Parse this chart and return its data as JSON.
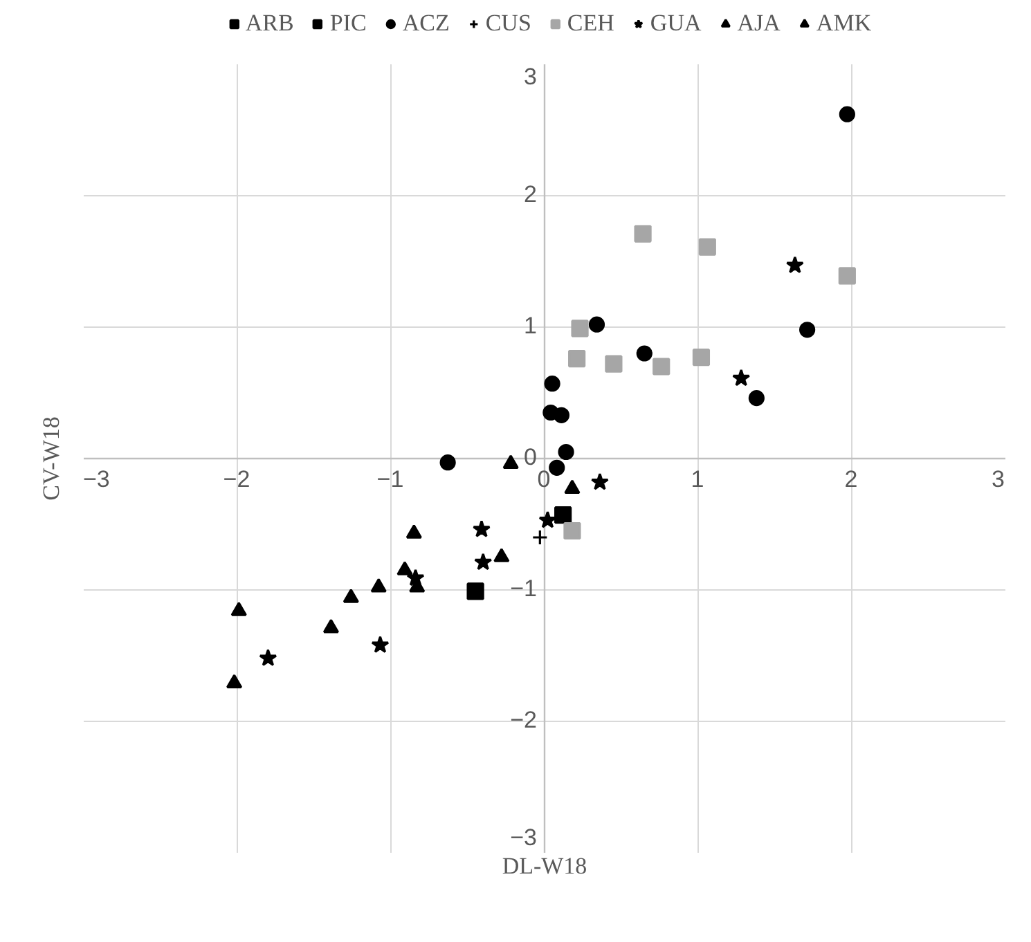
{
  "chart_data": {
    "type": "scatter",
    "xlabel": "DL-W18",
    "ylabel": "CV-W18",
    "xlim": [
      -3,
      3
    ],
    "ylim": [
      -3,
      3
    ],
    "xticks": [
      -3,
      -2,
      -1,
      0,
      1,
      2,
      3
    ],
    "yticks": [
      -3,
      -2,
      -1,
      0,
      1,
      2,
      3
    ],
    "grid": true,
    "legend": "top",
    "series": [
      {
        "name": "ARB",
        "color": "#000000",
        "marker": "square",
        "x": [
          -0.45
        ],
        "values": [
          -1.01
        ]
      },
      {
        "name": "PIC",
        "color": "#000000",
        "marker": "square",
        "x": [
          0.12
        ],
        "values": [
          -0.43
        ]
      },
      {
        "name": "ACZ",
        "color": "#000000",
        "marker": "circle",
        "x": [
          1.97,
          0.34,
          0.65,
          1.71,
          1.38,
          0.05,
          0.04,
          0.11,
          0.14,
          -0.63,
          0.08
        ],
        "values": [
          2.62,
          1.02,
          0.8,
          0.98,
          0.46,
          0.57,
          0.35,
          0.33,
          0.05,
          -0.03,
          -0.07
        ]
      },
      {
        "name": "CUS",
        "color": "#000000",
        "marker": "cross",
        "x": [
          -0.03
        ],
        "values": [
          -0.6
        ]
      },
      {
        "name": "CEH",
        "color": "#a6a6a6",
        "marker": "square",
        "x": [
          0.64,
          1.06,
          1.97,
          0.23,
          0.21,
          0.45,
          0.76,
          1.02,
          0.18
        ],
        "values": [
          1.71,
          1.61,
          1.39,
          0.99,
          0.76,
          0.72,
          0.7,
          0.77,
          -0.55
        ]
      },
      {
        "name": "GUA",
        "color": "#000000",
        "marker": "star",
        "x": [
          1.63,
          1.28,
          0.36,
          0.02,
          -0.41,
          -0.4,
          -0.84,
          -1.07,
          -1.8
        ],
        "values": [
          1.47,
          0.61,
          -0.18,
          -0.47,
          -0.54,
          -0.79,
          -0.91,
          -1.42,
          -1.52
        ]
      },
      {
        "name": "AJA",
        "color": "#000000",
        "marker": "triangle",
        "x": [
          0.18,
          -0.28,
          -0.83,
          -1.08,
          -1.26,
          -2.02
        ],
        "values": [
          -0.23,
          -0.75,
          -0.98,
          -0.98,
          -1.06,
          -1.71
        ]
      },
      {
        "name": "AMK",
        "color": "#000000",
        "marker": "triangle",
        "x": [
          -0.22,
          -0.85,
          -0.91,
          -1.99,
          -1.39
        ],
        "values": [
          -0.04,
          -0.57,
          -0.85,
          -1.16,
          -1.29
        ]
      }
    ]
  }
}
